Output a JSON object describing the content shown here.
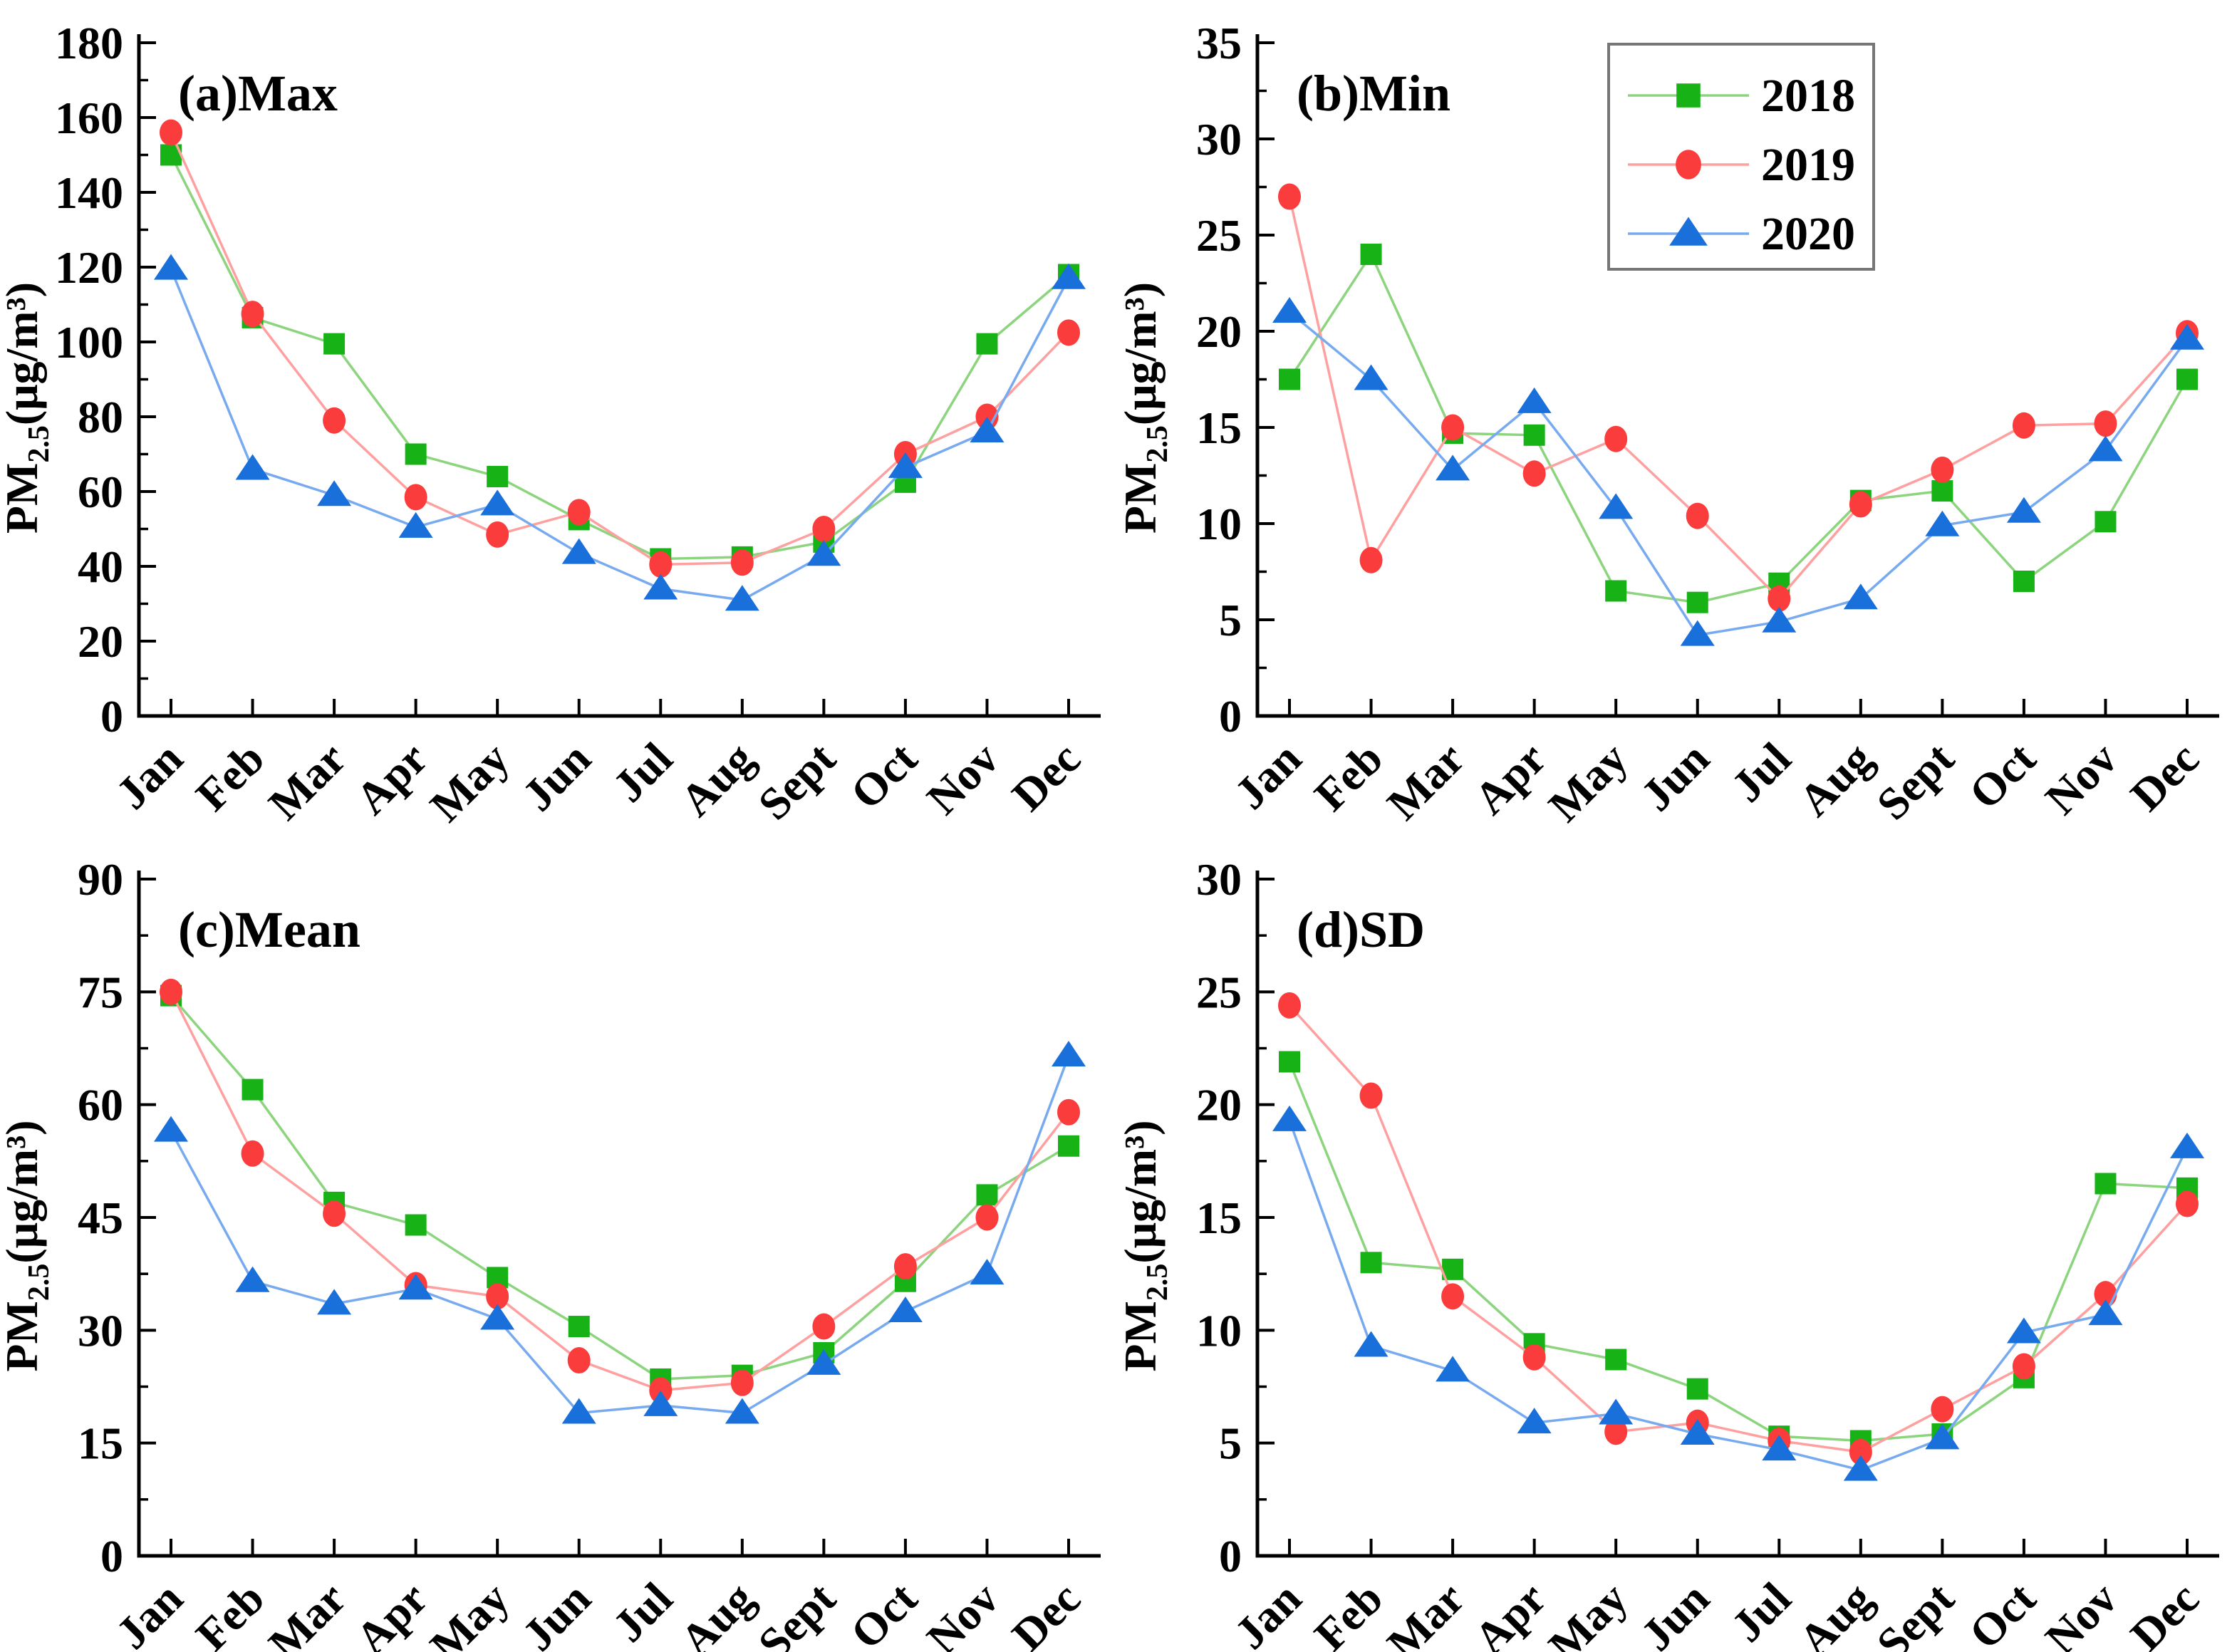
{
  "figure": {
    "background": "#ffffff",
    "y_axis_label": {
      "prefix": "PM",
      "sub": "2.5",
      "suffix": "(μg/m³)"
    }
  },
  "legend": {
    "position": "top-right of panel (b)",
    "items": [
      {
        "label": "2018",
        "marker": "square-icon",
        "marker_color": "#16b216",
        "line_color": "#8cd47e"
      },
      {
        "label": "2019",
        "marker": "circle-icon",
        "marker_color": "#fa3c3c",
        "line_color": "#ffa0a0"
      },
      {
        "label": "2020",
        "marker": "triangle-icon",
        "marker_color": "#1a70da",
        "line_color": "#78aaf0"
      }
    ]
  },
  "chart_data": [
    {
      "type": "line",
      "title": "(a)Max",
      "xlabel": "",
      "ylabel": "PM2.5(μg/m³)",
      "ylim": [
        0,
        180
      ],
      "ytick_step": 20,
      "grid": false,
      "categories": [
        "Jan",
        "Feb",
        "Mar",
        "Apr",
        "May",
        "Jun",
        "Jul",
        "Aug",
        "Sept",
        "Oct",
        "Nov",
        "Dec"
      ],
      "series": [
        {
          "name": "2018",
          "values": [
            150,
            106.5,
            99.5,
            70,
            64,
            52.5,
            42,
            42.5,
            46.5,
            62.5,
            99.5,
            118
          ]
        },
        {
          "name": "2019",
          "values": [
            156,
            107.5,
            79,
            58.5,
            48.5,
            54.5,
            40.5,
            41,
            50,
            70,
            80,
            102.5
          ]
        },
        {
          "name": "2020",
          "values": [
            119.5,
            66,
            59,
            50.5,
            56.5,
            43.5,
            34,
            31,
            43,
            66.5,
            76,
            117
          ]
        }
      ]
    },
    {
      "type": "line",
      "title": "(b)Min",
      "xlabel": "",
      "ylabel": "PM2.5(μg/m³)",
      "ylim": [
        0,
        35
      ],
      "ytick_step": 5,
      "grid": false,
      "legend_here": true,
      "categories": [
        "Jan",
        "Feb",
        "Mar",
        "Apr",
        "May",
        "Jun",
        "Jul",
        "Aug",
        "Sept",
        "Oct",
        "Nov",
        "Dec"
      ],
      "series": [
        {
          "name": "2018",
          "values": [
            17.5,
            24,
            14.7,
            14.6,
            6.5,
            5.9,
            6.9,
            11.2,
            11.7,
            7.0,
            10.1,
            17.5
          ]
        },
        {
          "name": "2019",
          "values": [
            27,
            8.1,
            15.0,
            12.6,
            14.4,
            10.4,
            6.1,
            11.0,
            12.8,
            15.1,
            15.2,
            19.9
          ]
        },
        {
          "name": "2020",
          "values": [
            21,
            17.5,
            12.8,
            16.3,
            10.8,
            4.2,
            4.9,
            6.1,
            9.9,
            10.6,
            13.8,
            19.6
          ]
        }
      ]
    },
    {
      "type": "line",
      "title": "(c)Mean",
      "xlabel": "",
      "ylabel": "PM2.5(μg/m³)",
      "ylim": [
        0,
        90
      ],
      "ytick_step": 15,
      "grid": false,
      "categories": [
        "Jan",
        "Feb",
        "Mar",
        "Apr",
        "May",
        "Jun",
        "Jul",
        "Aug",
        "Sept",
        "Oct",
        "Nov",
        "Dec"
      ],
      "series": [
        {
          "name": "2018",
          "values": [
            74.5,
            62,
            47,
            44,
            37,
            30.5,
            23.5,
            24,
            27,
            36.5,
            48,
            54.5
          ]
        },
        {
          "name": "2019",
          "values": [
            75,
            53.5,
            45.5,
            36,
            34.5,
            26,
            22,
            23,
            30.5,
            38.5,
            45,
            59
          ]
        },
        {
          "name": "2020",
          "values": [
            56.5,
            36.5,
            33.5,
            35.5,
            31.5,
            19,
            20,
            19,
            25.5,
            32.5,
            37.5,
            66.5
          ]
        }
      ]
    },
    {
      "type": "line",
      "title": "(d)SD",
      "xlabel": "",
      "ylabel": "PM2.5(μg/m³)",
      "ylim": [
        0,
        30
      ],
      "ytick_step": 5,
      "grid": false,
      "categories": [
        "Jan",
        "Feb",
        "Mar",
        "Apr",
        "May",
        "Jun",
        "Jul",
        "Aug",
        "Sept",
        "Oct",
        "Nov",
        "Dec"
      ],
      "series": [
        {
          "name": "2018",
          "values": [
            21.9,
            13.0,
            12.7,
            9.4,
            8.7,
            7.4,
            5.3,
            5.1,
            5.4,
            7.9,
            16.5,
            16.3
          ]
        },
        {
          "name": "2019",
          "values": [
            24.4,
            20.4,
            11.5,
            8.8,
            5.5,
            5.9,
            5.1,
            4.6,
            6.5,
            8.4,
            11.6,
            15.6
          ]
        },
        {
          "name": "2020",
          "values": [
            19.3,
            9.3,
            8.2,
            5.9,
            6.3,
            5.4,
            4.7,
            3.8,
            5.2,
            9.9,
            10.7,
            18.1
          ]
        }
      ]
    }
  ]
}
